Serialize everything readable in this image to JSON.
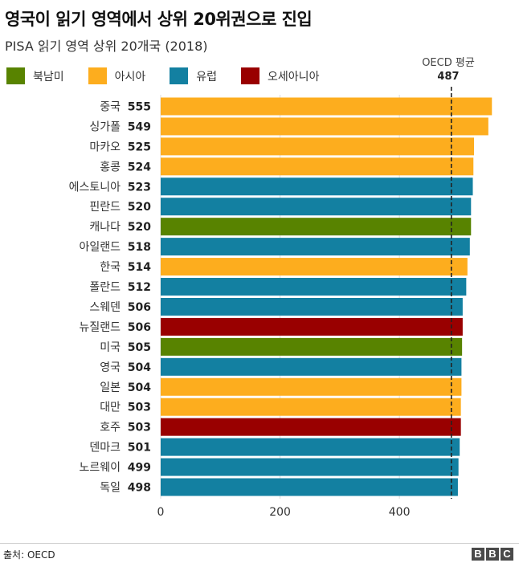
{
  "title": "영국이 읽기 영역에서 상위 20위권으로 진입",
  "subtitle": "PISA 읽기 영역 상위 20개국 (2018)",
  "legend": [
    {
      "label": "북남미",
      "color": "#588300"
    },
    {
      "label": "아시아",
      "color": "#fdad1e"
    },
    {
      "label": "유럽",
      "color": "#1380a1"
    },
    {
      "label": "오세아니아",
      "color": "#990000"
    }
  ],
  "reference": {
    "label": "OECD 평균",
    "value": "487"
  },
  "source": "출처: OECD",
  "logo": [
    "B",
    "B",
    "C"
  ],
  "chart_data": {
    "type": "bar",
    "orientation": "horizontal",
    "categories": [
      "중국",
      "싱가폴",
      "마카오",
      "홍콩",
      "에스토니아",
      "핀란드",
      "캐나다",
      "아일랜드",
      "한국",
      "폴란드",
      "스웨덴",
      "뉴질랜드",
      "미국",
      "영국",
      "일본",
      "대만",
      "호주",
      "덴마크",
      "노르웨이",
      "독일"
    ],
    "values": [
      555,
      549,
      525,
      524,
      523,
      520,
      520,
      518,
      514,
      512,
      506,
      506,
      505,
      504,
      504,
      503,
      503,
      501,
      499,
      498
    ],
    "regions": [
      "아시아",
      "아시아",
      "아시아",
      "아시아",
      "유럽",
      "유럽",
      "북남미",
      "유럽",
      "아시아",
      "유럽",
      "유럽",
      "오세아니아",
      "북남미",
      "유럽",
      "아시아",
      "아시아",
      "오세아니아",
      "유럽",
      "유럽",
      "유럽"
    ],
    "xlim": [
      0,
      560
    ],
    "xticks": [
      0,
      200,
      400
    ],
    "reference_line": 487,
    "grid": true
  }
}
